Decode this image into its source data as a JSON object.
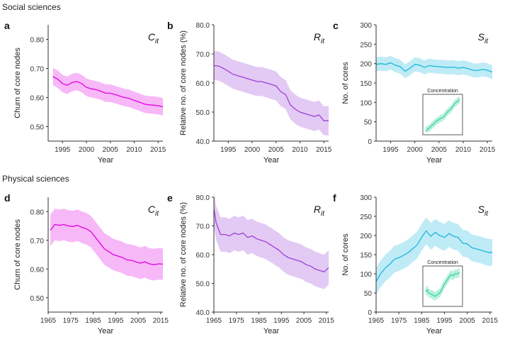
{
  "sections": [
    {
      "label": "Social sciences"
    },
    {
      "label": "Physical sciences"
    }
  ],
  "colors": {
    "pink": "#e100e1",
    "purple": "#9b3fd6",
    "cyan": "#19b6de",
    "green": "#16cc8e",
    "axis": "#333333"
  },
  "chart_data": [
    {
      "panel": "a",
      "type": "line",
      "ylabel": "Churn of core nodes",
      "xlabel": "Year",
      "series_label": "C_it",
      "xlim": [
        1992,
        2016
      ],
      "ylim": [
        0.45,
        0.85
      ],
      "xticks": [
        1995,
        2000,
        2005,
        2010,
        2015
      ],
      "yticks": [
        0.5,
        0.6,
        0.7,
        0.8
      ],
      "ytick_labels": [
        "0.50",
        "0.60",
        "0.70",
        "0.80"
      ],
      "color": "pink",
      "x": [
        1993,
        1994,
        1995,
        1996,
        1997,
        1998,
        1999,
        2000,
        2001,
        2002,
        2003,
        2004,
        2005,
        2006,
        2007,
        2008,
        2009,
        2010,
        2011,
        2012,
        2013,
        2014,
        2015,
        2016
      ],
      "y": [
        0.672,
        0.663,
        0.648,
        0.642,
        0.652,
        0.655,
        0.648,
        0.635,
        0.63,
        0.627,
        0.622,
        0.615,
        0.615,
        0.61,
        0.605,
        0.6,
        0.597,
        0.59,
        0.585,
        0.578,
        0.575,
        0.574,
        0.572,
        0.568
      ],
      "band": 0.03
    },
    {
      "panel": "b",
      "type": "line",
      "ylabel": "Relative no. of core nodes (%)",
      "xlabel": "Year",
      "series_label": "R_it",
      "xlim": [
        1992,
        2016
      ],
      "ylim": [
        40,
        80
      ],
      "xticks": [
        1995,
        2000,
        2005,
        2010,
        2015
      ],
      "yticks": [
        40,
        50,
        60,
        70,
        80
      ],
      "ytick_labels": [
        "40.0",
        "50.0",
        "60.0",
        "70.0",
        "80.0"
      ],
      "color": "purple",
      "x": [
        1992,
        1993,
        1994,
        1995,
        1996,
        1997,
        1998,
        1999,
        2000,
        2001,
        2002,
        2003,
        2004,
        2005,
        2006,
        2007,
        2008,
        2009,
        2010,
        2011,
        2012,
        2013,
        2014,
        2015,
        2016
      ],
      "y": [
        66.0,
        65.8,
        65.0,
        64.0,
        63.0,
        62.5,
        62.0,
        61.5,
        61.0,
        60.5,
        60.5,
        60.0,
        59.5,
        59.0,
        57.0,
        56.0,
        52.5,
        51.0,
        50.0,
        49.5,
        49.0,
        48.5,
        49.0,
        47.0,
        47.0
      ],
      "band": 5
    },
    {
      "panel": "c",
      "type": "line",
      "ylabel": "No. of cores",
      "xlabel": "Year",
      "series_label": "S_it",
      "xlim": [
        1992,
        2016
      ],
      "ylim": [
        0,
        300
      ],
      "xticks": [
        1995,
        2000,
        2005,
        2010,
        2015
      ],
      "yticks": [
        0,
        50,
        100,
        150,
        200,
        250,
        300
      ],
      "ytick_labels": [
        "0",
        "50",
        "100",
        "150",
        "200",
        "250",
        "300"
      ],
      "color": "cyan",
      "x": [
        1992,
        1993,
        1994,
        1995,
        1996,
        1997,
        1998,
        1999,
        2000,
        2001,
        2002,
        2003,
        2004,
        2005,
        2006,
        2007,
        2008,
        2009,
        2010,
        2011,
        2012,
        2013,
        2014,
        2015,
        2016
      ],
      "y": [
        198,
        200,
        198,
        202,
        196,
        192,
        180,
        188,
        198,
        196,
        190,
        195,
        193,
        192,
        191,
        190,
        191,
        188,
        190,
        187,
        183,
        182,
        185,
        183,
        178
      ],
      "band": 18,
      "inset": {
        "label": "Concentration",
        "color": "green",
        "x": [
          0,
          1,
          2,
          3,
          4,
          5,
          6,
          7,
          8,
          9,
          10,
          11,
          12,
          13,
          14,
          15,
          16,
          17,
          18,
          19,
          20,
          21,
          22,
          23,
          24
        ],
        "y": [
          0.05,
          0.08,
          0.12,
          0.14,
          0.18,
          0.22,
          0.25,
          0.3,
          0.33,
          0.35,
          0.38,
          0.4,
          0.42,
          0.45,
          0.5,
          0.55,
          0.6,
          0.62,
          0.66,
          0.72,
          0.78,
          0.82,
          0.85,
          0.88,
          0.92
        ],
        "band": 0.1
      }
    },
    {
      "panel": "d",
      "type": "line",
      "ylabel": "Churn of core nodes",
      "xlabel": "Year",
      "series_label": "C_it",
      "xlim": [
        1965,
        2016
      ],
      "ylim": [
        0.45,
        0.85
      ],
      "xticks": [
        1965,
        1975,
        1985,
        1995,
        2005,
        2015
      ],
      "yticks": [
        0.5,
        0.6,
        0.7,
        0.8
      ],
      "ytick_labels": [
        "0.50",
        "0.60",
        "0.70",
        "0.80"
      ],
      "color": "pink",
      "x": [
        1966,
        1968,
        1970,
        1972,
        1974,
        1976,
        1978,
        1980,
        1982,
        1984,
        1986,
        1988,
        1990,
        1992,
        1994,
        1996,
        1998,
        2000,
        2002,
        2004,
        2006,
        2008,
        2010,
        2012,
        2014,
        2016
      ],
      "y": [
        0.735,
        0.755,
        0.752,
        0.755,
        0.75,
        0.748,
        0.752,
        0.745,
        0.74,
        0.73,
        0.71,
        0.69,
        0.67,
        0.66,
        0.65,
        0.645,
        0.64,
        0.632,
        0.63,
        0.625,
        0.62,
        0.625,
        0.618,
        0.615,
        0.618,
        0.617
      ],
      "band": 0.055
    },
    {
      "panel": "e",
      "type": "line",
      "ylabel": "Relative no. of core nodes (%)",
      "xlabel": "Year",
      "series_label": "R_it",
      "xlim": [
        1965,
        2016
      ],
      "ylim": [
        40,
        80
      ],
      "xticks": [
        1965,
        1975,
        1985,
        1995,
        2005,
        2015
      ],
      "yticks": [
        40,
        50,
        60,
        70,
        80
      ],
      "ytick_labels": [
        "40.0",
        "50.0",
        "60.0",
        "70.0",
        "80.0"
      ],
      "color": "purple",
      "x": [
        1965,
        1966,
        1967,
        1968,
        1970,
        1972,
        1974,
        1976,
        1978,
        1980,
        1982,
        1984,
        1986,
        1988,
        1990,
        1992,
        1994,
        1996,
        1998,
        2000,
        2002,
        2004,
        2006,
        2008,
        2010,
        2012,
        2014,
        2016
      ],
      "y": [
        76.0,
        71.0,
        69.0,
        67.0,
        67.0,
        66.5,
        67.5,
        67.0,
        67.5,
        66.0,
        66.5,
        65.5,
        65.0,
        64.5,
        63.5,
        62.5,
        61.5,
        60.0,
        59.0,
        58.5,
        58.0,
        57.5,
        56.5,
        56.0,
        55.0,
        54.5,
        54.0,
        55.5
      ],
      "band": 6
    },
    {
      "panel": "f",
      "type": "line",
      "ylabel": "No. of cores",
      "xlabel": "Year",
      "series_label": "S_it",
      "xlim": [
        1965,
        2016
      ],
      "ylim": [
        0,
        300
      ],
      "xticks": [
        1965,
        1975,
        1985,
        1995,
        2005,
        2015
      ],
      "yticks": [
        0,
        50,
        100,
        150,
        200,
        250,
        300
      ],
      "ytick_labels": [
        "0",
        "50",
        "100",
        "150",
        "200",
        "250",
        "300"
      ],
      "color": "cyan",
      "x": [
        1965,
        1967,
        1969,
        1971,
        1973,
        1975,
        1977,
        1979,
        1981,
        1983,
        1985,
        1987,
        1989,
        1991,
        1993,
        1995,
        1997,
        1999,
        2001,
        2003,
        2005,
        2007,
        2009,
        2011,
        2013,
        2015,
        2016
      ],
      "y": [
        80,
        100,
        115,
        125,
        138,
        142,
        148,
        155,
        165,
        175,
        195,
        212,
        198,
        208,
        200,
        195,
        205,
        198,
        195,
        180,
        178,
        168,
        165,
        162,
        158,
        155,
        157
      ],
      "band": 35,
      "inset": {
        "label": "Concentration",
        "color": "green",
        "x": [
          0,
          1,
          2,
          3,
          4,
          5,
          6,
          7,
          8,
          9,
          10,
          11,
          12,
          13,
          14,
          15,
          16,
          17,
          18,
          19,
          20,
          21,
          22,
          23,
          24,
          25
        ],
        "y": [
          0.35,
          0.4,
          0.32,
          0.3,
          0.28,
          0.26,
          0.24,
          0.22,
          0.25,
          0.28,
          0.3,
          0.35,
          0.42,
          0.5,
          0.58,
          0.62,
          0.68,
          0.74,
          0.8,
          0.82,
          0.78,
          0.82,
          0.85,
          0.84,
          0.86,
          0.88
        ],
        "band": 0.12
      }
    }
  ]
}
